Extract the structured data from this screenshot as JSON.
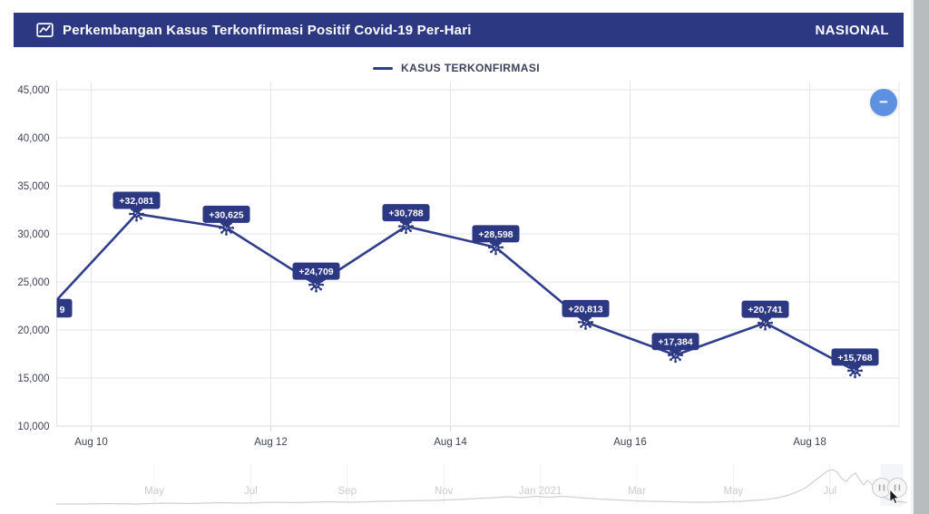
{
  "header": {
    "title": "Perkembangan Kasus Terkonfirmasi Positif Covid-19 Per-Hari",
    "region_label": "NASIONAL",
    "icon": "line-chart-icon"
  },
  "legend": {
    "label": "KASUS TERKONFIRMASI"
  },
  "zoom_button": {
    "glyph": "−"
  },
  "colors": {
    "navy": "#2c3881",
    "line": "#2f3d8c",
    "data_label_bg": "#2c3881",
    "data_label_text": "#ffffff",
    "grid": "#e6e6e6",
    "axis_line": "#d4d9e4",
    "axis_text": "#3f4356",
    "month_text": "#c9cbcd",
    "sparkline": "#cfd1d3",
    "handle_fill": "#f6f6f6",
    "handle_stroke": "#c9c9c9",
    "handle_bars": "#a6a6a6",
    "zoom_button_bg": "#5e90e2"
  },
  "chart_data": {
    "type": "line",
    "title": "Perkembangan Kasus Terkonfirmasi Positif Covid-19 Per-Hari",
    "legend_position": "top-center",
    "grid": true,
    "marker": "virus-icon",
    "ylim": [
      10000,
      45000
    ],
    "y_tick_values": [
      10000,
      15000,
      20000,
      25000,
      30000,
      35000,
      40000,
      45000
    ],
    "y_tick_labels": [
      "10,000",
      "15,000",
      "20,000",
      "25,000",
      "30,000",
      "35,000",
      "40,000",
      "45,000"
    ],
    "x_tick_labels": [
      "Aug 10",
      "Aug 12",
      "Aug 14",
      "Aug 16",
      "Aug 18"
    ],
    "series": [
      {
        "name": "KASUS TERKONFIRMASI",
        "points": [
          {
            "date": "Aug 9",
            "value": 22000,
            "estimated": true,
            "clipped": true,
            "label_fragment": "9"
          },
          {
            "date": "Aug 10",
            "value": 32081,
            "label": "+32,081"
          },
          {
            "date": "Aug 11",
            "value": 30625,
            "label": "+30,625"
          },
          {
            "date": "Aug 12",
            "value": 24709,
            "label": "+24,709"
          },
          {
            "date": "Aug 13",
            "value": 30788,
            "label": "+30,788"
          },
          {
            "date": "Aug 14",
            "value": 28598,
            "label": "+28,598"
          },
          {
            "date": "Aug 15",
            "value": 20813,
            "label": "+20,813"
          },
          {
            "date": "Aug 16",
            "value": 17384,
            "label": "+17,384"
          },
          {
            "date": "Aug 17",
            "value": 20741,
            "label": "+20,741"
          },
          {
            "date": "Aug 18",
            "value": 15768,
            "label": "+15,768"
          }
        ]
      }
    ]
  },
  "navigator": {
    "month_ticks": [
      "May",
      "Jul",
      "Sep",
      "Nov",
      "Jan 2021",
      "Mar",
      "May",
      "Jul"
    ],
    "sparkline": [
      [
        62,
        556
      ],
      [
        90,
        556
      ],
      [
        120,
        555.5
      ],
      [
        150,
        556
      ],
      [
        180,
        555
      ],
      [
        210,
        555.5
      ],
      [
        240,
        554.5
      ],
      [
        270,
        555
      ],
      [
        300,
        554
      ],
      [
        330,
        554.5
      ],
      [
        360,
        553.5
      ],
      [
        390,
        554
      ],
      [
        420,
        553
      ],
      [
        450,
        552.5
      ],
      [
        480,
        552
      ],
      [
        505,
        551
      ],
      [
        525,
        550
      ],
      [
        545,
        549
      ],
      [
        560,
        548
      ],
      [
        575,
        549
      ],
      [
        590,
        547.5
      ],
      [
        605,
        548.5
      ],
      [
        620,
        547.5
      ],
      [
        640,
        549
      ],
      [
        660,
        550.5
      ],
      [
        680,
        551.5
      ],
      [
        700,
        552.5
      ],
      [
        720,
        553
      ],
      [
        740,
        553.5
      ],
      [
        760,
        554
      ],
      [
        780,
        554
      ],
      [
        800,
        553.5
      ],
      [
        815,
        553
      ],
      [
        830,
        552
      ],
      [
        845,
        551
      ],
      [
        858,
        549
      ],
      [
        868,
        546.5
      ],
      [
        878,
        543
      ],
      [
        888,
        538
      ],
      [
        897,
        531
      ],
      [
        905,
        525
      ],
      [
        912,
        519.5
      ],
      [
        918,
        518
      ],
      [
        923,
        521
      ],
      [
        928,
        528
      ],
      [
        933,
        531
      ],
      [
        938,
        525
      ],
      [
        943,
        522
      ],
      [
        948,
        530
      ],
      [
        952,
        535
      ],
      [
        956,
        530
      ],
      [
        960,
        533
      ],
      [
        964,
        539
      ],
      [
        968,
        544
      ],
      [
        973,
        548
      ],
      [
        980,
        551
      ],
      [
        988,
        553
      ],
      [
        996,
        554
      ],
      [
        1000,
        554.5
      ]
    ]
  }
}
